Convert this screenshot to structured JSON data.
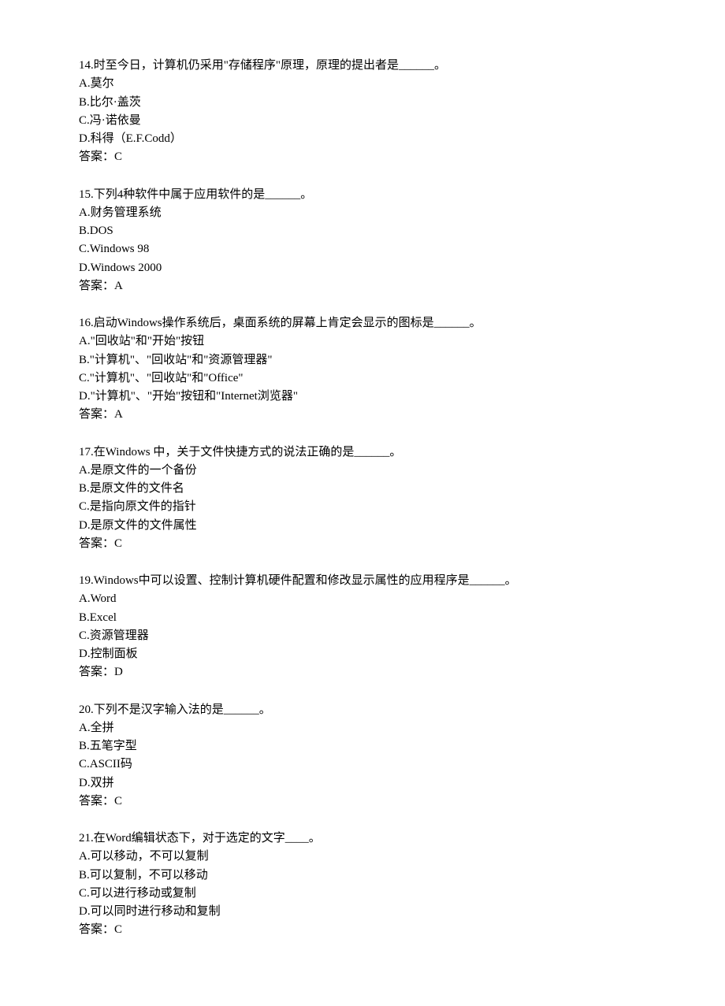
{
  "questions": [
    {
      "stem": "14.时至今日，计算机仍采用\"存储程序\"原理，原理的提出者是______。",
      "options": [
        "A.莫尔",
        "B.比尔·盖茨",
        "C.冯·诺依曼",
        "D.科得（E.F.Codd）"
      ],
      "answer": "答案：C"
    },
    {
      "stem": "15.下列4种软件中属于应用软件的是______。",
      "options": [
        "A.财务管理系统",
        "B.DOS",
        "C.Windows 98",
        "D.Windows 2000"
      ],
      "answer": "答案：A"
    },
    {
      "stem": "16.启动Windows操作系统后，桌面系统的屏幕上肯定会显示的图标是______。",
      "options": [
        "A.\"回收站\"和\"开始\"按钮",
        "B.\"计算机\"、\"回收站\"和\"资源管理器\"",
        "C.\"计算机\"、\"回收站\"和\"Office\"",
        "D.\"计算机\"、\"开始\"按钮和\"Internet浏览器\""
      ],
      "answer": "答案：A"
    },
    {
      "stem": "17.在Windows 中，关于文件快捷方式的说法正确的是______。",
      "options": [
        "A.是原文件的一个备份",
        "B.是原文件的文件名",
        "C.是指向原文件的指针",
        "D.是原文件的文件属性"
      ],
      "answer": "答案：C"
    },
    {
      "stem": "19.Windows中可以设置、控制计算机硬件配置和修改显示属性的应用程序是______。",
      "options": [
        "A.Word",
        "B.Excel",
        "C.资源管理器",
        "D.控制面板"
      ],
      "answer": "答案：D"
    },
    {
      "stem": "20.下列不是汉字输入法的是______。",
      "options": [
        "A.全拼",
        "B.五笔字型",
        "C.ASCII码",
        "D.双拼"
      ],
      "answer": "答案：C"
    },
    {
      "stem": "21.在Word编辑状态下，对于选定的文字____。",
      "options": [
        "A.可以移动，不可以复制",
        "B.可以复制，不可以移动",
        "C.可以进行移动或复制",
        "D.可以同时进行移动和复制"
      ],
      "answer": "答案：C"
    }
  ],
  "text_color": "#000000",
  "background_color": "#ffffff",
  "font_family": "SimSun",
  "font_size_pt": 11
}
